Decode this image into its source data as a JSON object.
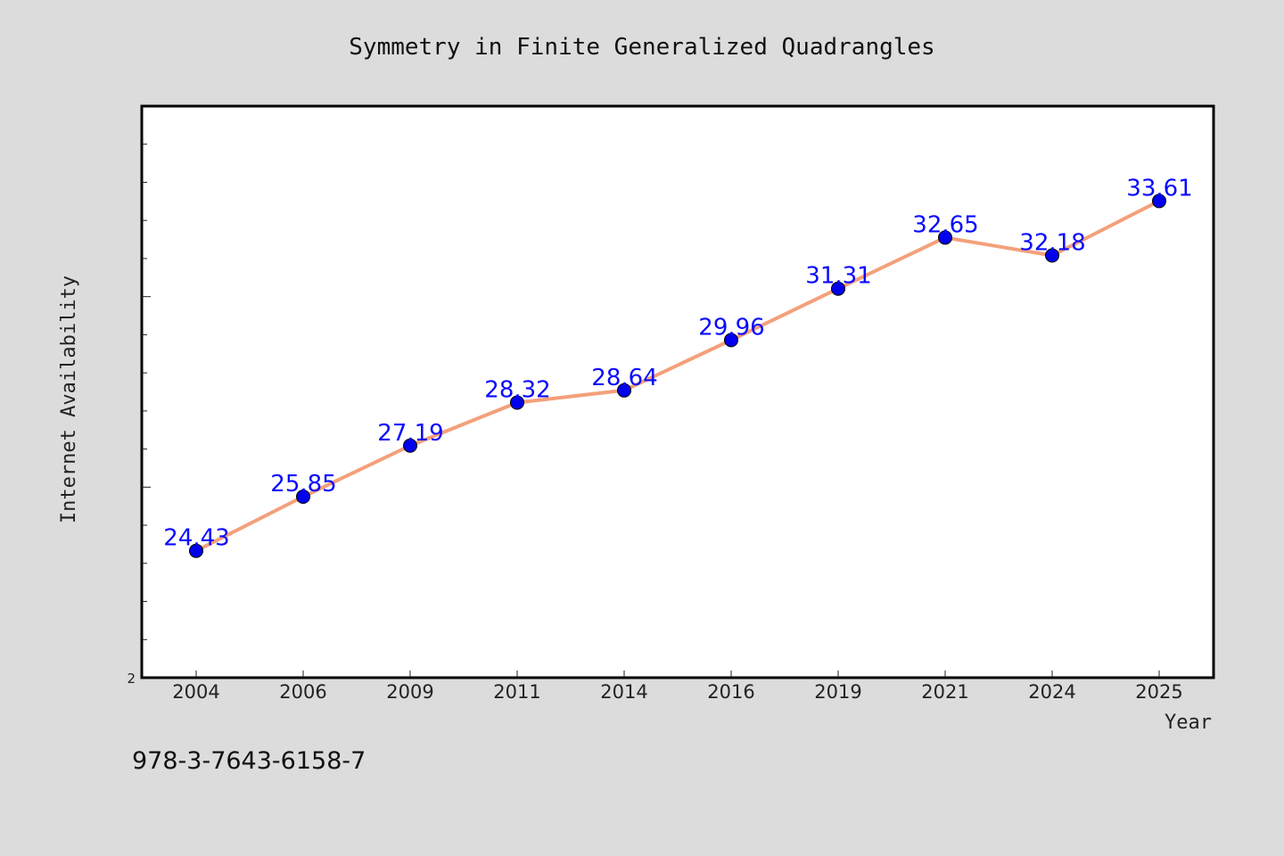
{
  "chart_data": {
    "type": "line",
    "title": "Symmetry in Finite Generalized Quadrangles",
    "xlabel": "Year",
    "ylabel": "Internet Availability",
    "categories": [
      "2004",
      "2006",
      "2009",
      "2011",
      "2014",
      "2016",
      "2019",
      "2021",
      "2024",
      "2025"
    ],
    "series": [
      {
        "values": [
          24.43,
          25.85,
          27.19,
          28.32,
          28.64,
          29.96,
          31.31,
          32.65,
          32.18,
          33.61
        ]
      }
    ],
    "ylim": [
      21.1,
      36.1
    ],
    "y_tick_labels": [
      "2"
    ],
    "grid": false,
    "data_labels": true,
    "line_color": "#f4a07a",
    "marker_color": "#0000ee",
    "label_color": "#0a0aff"
  },
  "footer": {
    "isbn": "978-3-7643-6158-7"
  },
  "colors": {
    "background": "#dcdcdc",
    "plot_background": "#ffffff"
  }
}
